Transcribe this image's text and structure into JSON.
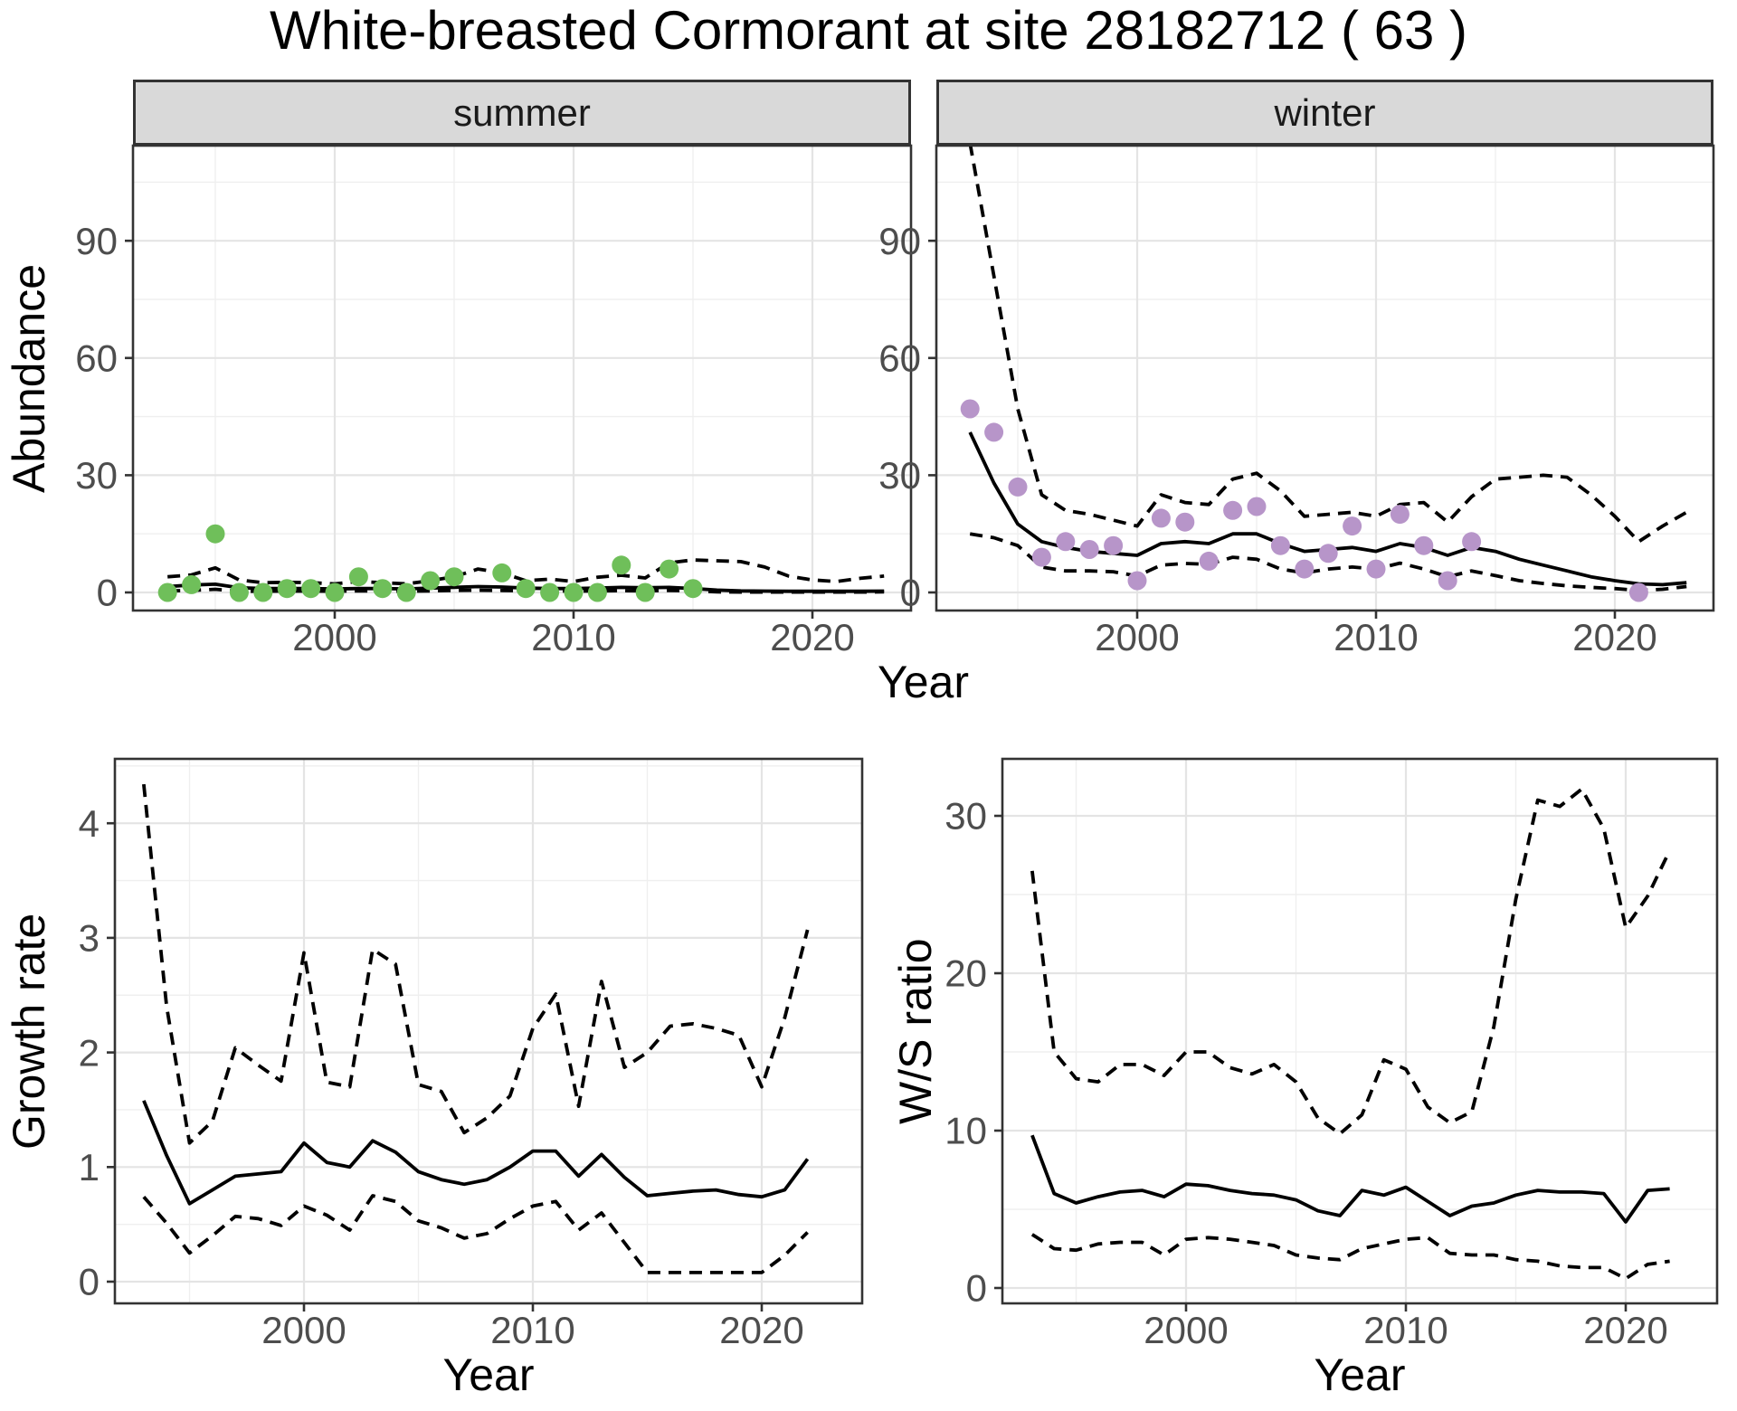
{
  "title": "White-breasted Cormorant at site 28182712 ( 63 )",
  "facets": [
    {
      "label": "summer"
    },
    {
      "label": "winter"
    }
  ],
  "axes": {
    "abundance_label": "Abundance",
    "year_label": "Year",
    "growth_label": "Growth rate",
    "ws_label": "W/S ratio"
  },
  "colors": {
    "summer_point": "#6fbf5a",
    "winter_point": "#b795c9",
    "line": "#000000",
    "strip_bg": "#d9d9d9",
    "strip_border": "#333333",
    "panel_border": "#333333",
    "grid_major": "#e4e4e4",
    "grid_minor": "#efefef",
    "tick_text": "#4d4d4d"
  },
  "chart_data": [
    {
      "id": "summer",
      "type": "line",
      "facet": "summer",
      "ylabel": "Abundance",
      "xlabel": "Year",
      "x": [
        1993,
        1994,
        1995,
        1996,
        1997,
        1998,
        1999,
        2000,
        2001,
        2002,
        2003,
        2004,
        2005,
        2006,
        2007,
        2008,
        2009,
        2010,
        2011,
        2012,
        2013,
        2014,
        2015,
        2016,
        2017,
        2018,
        2019,
        2020,
        2021,
        2022,
        2023
      ],
      "series": [
        {
          "name": "fit",
          "style": "solid",
          "values": [
            1.5,
            1.9,
            2.1,
            1.2,
            1.0,
            1.0,
            1.0,
            0.9,
            1.0,
            1.0,
            0.9,
            1.1,
            1.3,
            1.5,
            1.4,
            1.1,
            1.0,
            1.0,
            1.1,
            1.3,
            1.2,
            1.3,
            1.0,
            0.6,
            0.4,
            0.35,
            0.3,
            0.3,
            0.3,
            0.3,
            0.35
          ]
        },
        {
          "name": "upper_ci",
          "style": "dashed",
          "values": [
            4.0,
            4.5,
            6.3,
            3.2,
            2.5,
            2.6,
            2.5,
            2.2,
            2.8,
            2.5,
            2.2,
            3.0,
            4.0,
            6.0,
            5.0,
            3.0,
            3.4,
            2.8,
            3.9,
            4.4,
            3.7,
            7.6,
            8.3,
            8.1,
            7.9,
            6.5,
            4.2,
            3.2,
            2.8,
            3.6,
            4.2
          ]
        },
        {
          "name": "lower_ci",
          "style": "dashed",
          "values": [
            0.4,
            0.5,
            0.8,
            0.3,
            0.3,
            0.35,
            0.35,
            0.3,
            0.4,
            0.35,
            0.3,
            0.4,
            0.5,
            0.55,
            0.5,
            0.4,
            0.35,
            0.35,
            0.4,
            0.45,
            0.4,
            0.5,
            0.4,
            0.15,
            0.1,
            0.1,
            0.1,
            0.1,
            0.1,
            0.1,
            0.15
          ]
        }
      ],
      "points": {
        "color_key": "summer_point",
        "data": [
          [
            1993,
            0
          ],
          [
            1994,
            2
          ],
          [
            1995,
            15
          ],
          [
            1996,
            0
          ],
          [
            1997,
            0
          ],
          [
            1998,
            1
          ],
          [
            1999,
            1
          ],
          [
            2000,
            0
          ],
          [
            2001,
            4
          ],
          [
            2002,
            1
          ],
          [
            2003,
            0
          ],
          [
            2004,
            3
          ],
          [
            2005,
            4
          ],
          [
            2007,
            5
          ],
          [
            2008,
            1
          ],
          [
            2009,
            0
          ],
          [
            2010,
            0
          ],
          [
            2011,
            0
          ],
          [
            2012,
            7
          ],
          [
            2013,
            0
          ],
          [
            2014,
            6
          ],
          [
            2015,
            1
          ]
        ]
      },
      "x_ticks": [
        2000,
        2010,
        2020
      ],
      "x_minor": [
        1995,
        2005,
        2015
      ],
      "y_ticks": [
        0,
        30,
        60,
        90
      ],
      "y_minor": [
        15,
        45,
        75,
        105
      ],
      "xlim": [
        1991.6,
        2024.1
      ],
      "ylim": [
        -4.6,
        114
      ]
    },
    {
      "id": "winter",
      "type": "line",
      "facet": "winter",
      "ylabel": "Abundance",
      "xlabel": "Year",
      "x": [
        1993,
        1994,
        1995,
        1996,
        1997,
        1998,
        1999,
        2000,
        2001,
        2002,
        2003,
        2004,
        2005,
        2006,
        2007,
        2008,
        2009,
        2010,
        2011,
        2012,
        2013,
        2014,
        2015,
        2016,
        2017,
        2018,
        2019,
        2020,
        2021,
        2022,
        2023
      ],
      "series": [
        {
          "name": "fit",
          "style": "solid",
          "values": [
            41,
            28,
            17.5,
            13,
            11.5,
            10.5,
            10,
            9.5,
            12.5,
            13,
            12.5,
            15,
            15,
            12.5,
            10.5,
            11,
            11.5,
            10.5,
            12.5,
            11.5,
            9.5,
            11.5,
            10.5,
            8.5,
            7,
            5.5,
            4,
            3,
            2.2,
            2,
            2.5
          ]
        },
        {
          "name": "upper_ci",
          "style": "dashed",
          "values": [
            115,
            81,
            47,
            25,
            21,
            20,
            18.5,
            17,
            25,
            23,
            22.5,
            29,
            30.5,
            26,
            19.5,
            20,
            20.5,
            19.5,
            22.5,
            23,
            18,
            24.5,
            29,
            29.5,
            30,
            29.5,
            25,
            19.5,
            13,
            17,
            20.5
          ]
        },
        {
          "name": "lower_ci",
          "style": "dashed",
          "values": [
            15,
            14,
            12,
            6.5,
            5.5,
            5.5,
            5.3,
            4.2,
            7,
            7.4,
            7.2,
            9,
            8.5,
            6,
            5,
            6,
            6.5,
            6,
            7.5,
            6,
            4,
            5.5,
            4.3,
            3,
            2.3,
            1.7,
            1.3,
            1,
            0.5,
            0.8,
            1.5
          ]
        }
      ],
      "points": {
        "color_key": "winter_point",
        "data": [
          [
            1993,
            47
          ],
          [
            1994,
            41
          ],
          [
            1995,
            27
          ],
          [
            1996,
            9
          ],
          [
            1997,
            13
          ],
          [
            1998,
            11
          ],
          [
            1999,
            12
          ],
          [
            2000,
            3
          ],
          [
            2001,
            19
          ],
          [
            2002,
            18
          ],
          [
            2003,
            8
          ],
          [
            2004,
            21
          ],
          [
            2005,
            22
          ],
          [
            2006,
            12
          ],
          [
            2007,
            6
          ],
          [
            2008,
            10
          ],
          [
            2009,
            17
          ],
          [
            2010,
            6
          ],
          [
            2011,
            20
          ],
          [
            2012,
            12
          ],
          [
            2013,
            3
          ],
          [
            2014,
            13
          ],
          [
            2021,
            0
          ]
        ]
      },
      "x_ticks": [
        2000,
        2010,
        2020
      ],
      "x_minor": [
        1995,
        2005,
        2015
      ],
      "y_ticks": [
        0,
        30,
        60,
        90
      ],
      "y_minor": [
        15,
        45,
        75,
        105
      ],
      "xlim": [
        1991.6,
        2024.0
      ],
      "ylim": [
        -4.6,
        114
      ]
    },
    {
      "id": "growth",
      "type": "line",
      "ylabel": "Growth rate",
      "xlabel": "Year",
      "x": [
        1993,
        1994,
        1995,
        1996,
        1997,
        1998,
        1999,
        2000,
        2001,
        2002,
        2003,
        2004,
        2005,
        2006,
        2007,
        2008,
        2009,
        2010,
        2011,
        2012,
        2013,
        2014,
        2015,
        2016,
        2017,
        2018,
        2019,
        2020,
        2021,
        2022
      ],
      "series": [
        {
          "name": "fit",
          "style": "solid",
          "values": [
            1.58,
            1.1,
            0.68,
            0.8,
            0.92,
            0.94,
            0.96,
            1.21,
            1.04,
            1.0,
            1.23,
            1.13,
            0.96,
            0.89,
            0.85,
            0.89,
            1.0,
            1.14,
            1.14,
            0.92,
            1.11,
            0.91,
            0.75,
            0.77,
            0.79,
            0.8,
            0.76,
            0.74,
            0.8,
            1.07
          ]
        },
        {
          "name": "upper_ci",
          "style": "dashed",
          "values": [
            4.34,
            2.4,
            1.21,
            1.4,
            2.04,
            1.89,
            1.75,
            2.87,
            1.74,
            1.7,
            2.9,
            2.77,
            1.72,
            1.66,
            1.3,
            1.43,
            1.62,
            2.21,
            2.51,
            1.53,
            2.62,
            1.87,
            2.0,
            2.23,
            2.25,
            2.21,
            2.15,
            1.7,
            2.3,
            3.07
          ]
        },
        {
          "name": "lower_ci",
          "style": "dashed",
          "values": [
            0.74,
            0.51,
            0.25,
            0.4,
            0.57,
            0.55,
            0.49,
            0.66,
            0.58,
            0.45,
            0.75,
            0.7,
            0.53,
            0.47,
            0.38,
            0.42,
            0.55,
            0.66,
            0.7,
            0.45,
            0.6,
            0.34,
            0.08,
            0.08,
            0.08,
            0.08,
            0.08,
            0.08,
            0.23,
            0.43
          ]
        }
      ],
      "x_ticks": [
        2000,
        2010,
        2020
      ],
      "x_minor": [
        1995,
        2005,
        2015
      ],
      "y_ticks": [
        0,
        1,
        2,
        3,
        4
      ],
      "y_minor": [
        0.5,
        1.5,
        2.5,
        3.5,
        4.5
      ],
      "xlim": [
        1991.7,
        2024.4
      ],
      "ylim": [
        -0.19,
        4.56
      ]
    },
    {
      "id": "ws",
      "type": "line",
      "ylabel": "W/S ratio",
      "xlabel": "Year",
      "x": [
        1993,
        1994,
        1995,
        1996,
        1997,
        1998,
        1999,
        2000,
        2001,
        2002,
        2003,
        2004,
        2005,
        2006,
        2007,
        2008,
        2009,
        2010,
        2011,
        2012,
        2013,
        2014,
        2015,
        2016,
        2017,
        2018,
        2019,
        2020,
        2021,
        2022
      ],
      "series": [
        {
          "name": "fit",
          "style": "solid",
          "values": [
            9.7,
            6.0,
            5.4,
            5.8,
            6.1,
            6.2,
            5.8,
            6.6,
            6.5,
            6.2,
            6.0,
            5.9,
            5.6,
            4.9,
            4.6,
            6.2,
            5.9,
            6.4,
            5.5,
            4.6,
            5.2,
            5.4,
            5.9,
            6.2,
            6.1,
            6.1,
            6.0,
            4.2,
            6.2,
            6.3
          ]
        },
        {
          "name": "upper_ci",
          "style": "dashed",
          "values": [
            26.5,
            15.0,
            13.3,
            13.1,
            14.2,
            14.2,
            13.5,
            15.0,
            15.0,
            14.0,
            13.6,
            14.2,
            13.1,
            10.8,
            9.8,
            11.0,
            14.5,
            13.9,
            11.5,
            10.5,
            11.2,
            16.6,
            24.7,
            31.0,
            30.6,
            31.7,
            29.2,
            22.9,
            24.9,
            27.8
          ]
        },
        {
          "name": "lower_ci",
          "style": "dashed",
          "values": [
            3.4,
            2.5,
            2.4,
            2.8,
            2.9,
            2.9,
            2.1,
            3.1,
            3.2,
            3.1,
            2.9,
            2.7,
            2.1,
            1.9,
            1.8,
            2.5,
            2.8,
            3.1,
            3.2,
            2.2,
            2.1,
            2.1,
            1.8,
            1.7,
            1.4,
            1.3,
            1.3,
            0.6,
            1.5,
            1.7
          ]
        }
      ],
      "x_ticks": [
        2000,
        2010,
        2020
      ],
      "x_minor": [
        1995,
        2005,
        2015
      ],
      "y_ticks": [
        0,
        10,
        20,
        30
      ],
      "y_minor": [
        5,
        15,
        25
      ],
      "xlim": [
        1991.7,
        2024.4
      ],
      "ylim": [
        -0.95,
        33.25
      ]
    }
  ]
}
